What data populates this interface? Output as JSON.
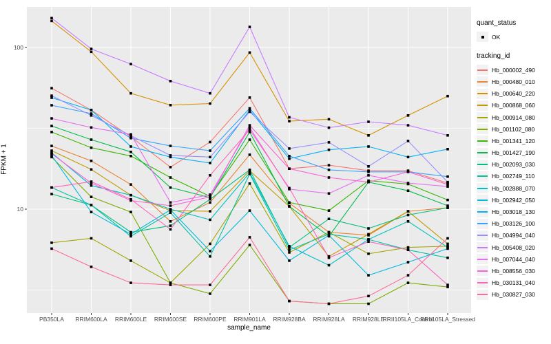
{
  "colors": {
    "panel_bg": "#EBEBEB",
    "grid": "#FFFFFF",
    "point": "#000000",
    "tick": "#333333",
    "tick_label": "#4D4D4D",
    "legend_key_bg": "#F2F2F2"
  },
  "legend": {
    "quant_title": "quant_status",
    "quant_items": [
      "OK"
    ],
    "tracking_title": "tracking_id"
  },
  "chart_data": {
    "type": "line",
    "title": "",
    "xlabel": "sample_name",
    "ylabel": "FPKM + 1",
    "y_scale": "log10",
    "ylim": [
      2.3,
      180
    ],
    "y_major_ticks": [
      100,
      10
    ],
    "y_minor_ticks": [
      31.6,
      3.16
    ],
    "grid": true,
    "legend_position": "right",
    "point_marker": "black-square",
    "categories": [
      "PB350LA",
      "RRIM600LA",
      "RRIM600LE",
      "RRIM600SE",
      "RRIM600PE",
      "RRIM901LA",
      "RRIM928BA",
      "RRIM928LA",
      "RRIM928LE",
      "RRII105LA_Control",
      "RRII105LA_Stressed"
    ],
    "series": [
      {
        "name": "Hb_000002_490",
        "color": "#F8766D",
        "quant_status": "OK",
        "values": [
          56,
          41,
          28,
          18.2,
          26,
          49,
          17.8,
          18.7,
          17.3,
          17.3,
          14.5
        ]
      },
      {
        "name": "Hb_000480_010",
        "color": "#EA8331",
        "quant_status": "OK",
        "values": [
          24.6,
          19.9,
          14.2,
          8.4,
          11,
          21.7,
          10.9,
          7.2,
          6.9,
          9.7,
          10.2
        ]
      },
      {
        "name": "Hb_000640_220",
        "color": "#D89000",
        "quant_status": "OK",
        "values": [
          146,
          94,
          52,
          44,
          45,
          93,
          35,
          36,
          28.6,
          38,
          50
        ]
      },
      {
        "name": "Hb_000868_060",
        "color": "#C09B00",
        "quant_status": "OK",
        "values": [
          23,
          17.6,
          12.2,
          9.8,
          9.7,
          17.3,
          10.4,
          5.1,
          7,
          9.7,
          6.1
        ]
      },
      {
        "name": "Hb_000914_080",
        "color": "#A3A500",
        "quant_status": "OK",
        "values": [
          6.2,
          6.6,
          4.8,
          3.5,
          6.1,
          14.4,
          5.4,
          7.2,
          5.3,
          5.8,
          5.9
        ]
      },
      {
        "name": "Hb_001102_080",
        "color": "#7CAE00",
        "quant_status": "OK",
        "values": [
          21,
          11.9,
          9.6,
          3.5,
          3.0,
          6.0,
          2.7,
          2.6,
          2.6,
          3.5,
          3.3
        ]
      },
      {
        "name": "Hb_001341_120",
        "color": "#39B600",
        "quant_status": "OK",
        "values": [
          30,
          24,
          21.3,
          15.7,
          12,
          26.9,
          11,
          9.8,
          15,
          14.3,
          11.4
        ]
      },
      {
        "name": "Hb_001427_190",
        "color": "#00BB4E",
        "quant_status": "OK",
        "values": [
          32.7,
          26.9,
          22.6,
          13.6,
          11.8,
          30,
          10.4,
          6.8,
          14.7,
          13,
          10.5
        ]
      },
      {
        "name": "Hb_002093_030",
        "color": "#00BF7D",
        "quant_status": "OK",
        "values": [
          12.4,
          10.6,
          7.2,
          7.9,
          11.5,
          17.5,
          5.8,
          8.7,
          7.6,
          9.2,
          10.2
        ]
      },
      {
        "name": "Hb_002749_110",
        "color": "#00C1A3",
        "quant_status": "OK",
        "values": [
          13.6,
          10.6,
          6.8,
          9.5,
          5.1,
          16.5,
          5.6,
          7,
          6.5,
          5.6,
          5
        ]
      },
      {
        "name": "Hb_002888_070",
        "color": "#00BFC4",
        "quant_status": "OK",
        "values": [
          22.3,
          14,
          12.2,
          10,
          8.6,
          16.8,
          5.9,
          4.5,
          6.5,
          8.4,
          5.8
        ]
      },
      {
        "name": "Hb_002942_050",
        "color": "#00BAE0",
        "quant_status": "OK",
        "values": [
          21.5,
          9.6,
          7,
          9.9,
          5.5,
          9.8,
          4.8,
          6.9,
          3.9,
          4.7,
          5.7
        ]
      },
      {
        "name": "Hb_003018_130",
        "color": "#00B0F6",
        "quant_status": "OK",
        "values": [
          48.9,
          41,
          24.4,
          21,
          19.3,
          41,
          20.5,
          23.3,
          24.4,
          21,
          23.5
        ]
      },
      {
        "name": "Hb_003126_100",
        "color": "#35A2FF",
        "quant_status": "OK",
        "values": [
          43.9,
          39,
          27.5,
          24.6,
          23,
          42,
          21.3,
          17.5,
          17,
          17,
          15.9
        ]
      },
      {
        "name": "Hb_004994_040",
        "color": "#9590FF",
        "quant_status": "OK",
        "values": [
          50.3,
          38,
          28.5,
          21.5,
          21,
          40,
          23.7,
          25.9,
          18.4,
          26.4,
          14.7
        ]
      },
      {
        "name": "Hb_005408_020",
        "color": "#C77CFF",
        "quant_status": "OK",
        "values": [
          152,
          98,
          79,
          62,
          52,
          134,
          37,
          31.9,
          34.7,
          33,
          28.6
        ]
      },
      {
        "name": "Hb_007044_040",
        "color": "#E76BF3",
        "quant_status": "OK",
        "values": [
          36.4,
          32,
          29,
          11,
          12.3,
          32,
          13.3,
          12.5,
          16.2,
          14.5,
          13.8
        ]
      },
      {
        "name": "Hb_008556_030",
        "color": "#FA62DB",
        "quant_status": "OK",
        "values": [
          22,
          14.5,
          11.3,
          10.5,
          11.9,
          33,
          17.8,
          15.7,
          14.7,
          17,
          14.2
        ]
      },
      {
        "name": "Hb_030131_040",
        "color": "#FF62BC",
        "quant_status": "OK",
        "values": [
          13.6,
          14.8,
          11.5,
          7.5,
          16.2,
          31,
          13.5,
          5,
          6.3,
          5.6,
          3.4
        ]
      },
      {
        "name": "Hb_030827_030",
        "color": "#FF6A98",
        "quant_status": "OK",
        "values": [
          5.7,
          4.4,
          3.5,
          3.4,
          3.4,
          6.7,
          2.7,
          2.6,
          2.9,
          3.9,
          6.6
        ]
      }
    ]
  }
}
